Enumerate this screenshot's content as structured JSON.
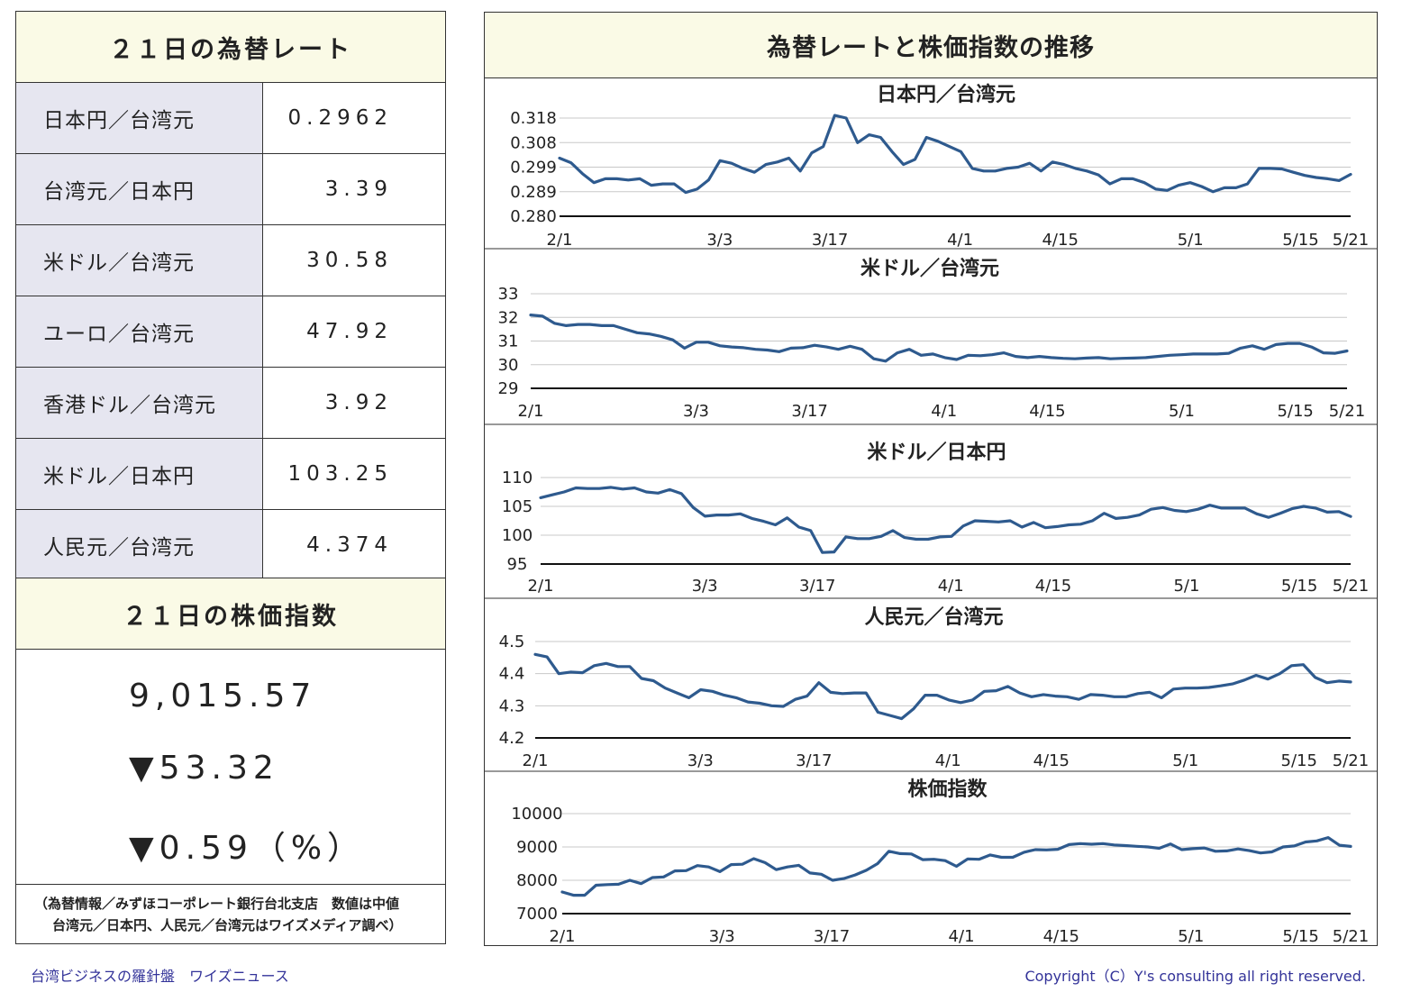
{
  "left_panel": {
    "rates_title": "２１日の為替レート",
    "rates": [
      {
        "label": "日本円／台湾元",
        "value": "0.2962"
      },
      {
        "label": "台湾元／日本円",
        "value": "3.39"
      },
      {
        "label": "米ドル／台湾元",
        "value": "30.58"
      },
      {
        "label": "ユーロ／台湾元",
        "value": "47.92"
      },
      {
        "label": "香港ドル／台湾元",
        "value": "3.92"
      },
      {
        "label": "米ドル／日本円",
        "value": "103.25"
      },
      {
        "label": "人民元／台湾元",
        "value": "4.374"
      }
    ],
    "stock_title": "２１日の株価指数",
    "stock_value": "9,015.57",
    "stock_change": "▼53.32",
    "stock_change_pct": "▼0.59（%）",
    "source_line1": "（為替情報／みずほコーポレート銀行台北支店　数値は中値",
    "source_line2": "台湾元／日本円、人民元／台湾元はワイズメディア調べ）"
  },
  "right_panel": {
    "title": "為替レートと株価指数の推移"
  },
  "footer": {
    "left": "台湾ビジネスの羅針盤　ワイズニュース",
    "right": "Copyright（C）Y's consulting all right reserved."
  },
  "colors": {
    "line": "#2e5a8e",
    "header_bg": "#fafae6",
    "label_bg": "#e6e6f0",
    "footer_text": "#333399"
  },
  "chart_data": [
    {
      "type": "line",
      "title": "日本円／台湾元",
      "x_tick_labels": [
        "2/1",
        "3/3",
        "3/17",
        "4/1",
        "4/15",
        "5/1",
        "5/15",
        "5/21"
      ],
      "y_tick_labels": [
        "0.318",
        "0.308",
        "0.299",
        "0.289",
        "0.280"
      ],
      "ylim": [
        0.28,
        0.318
      ],
      "x_range": [
        0,
        79
      ],
      "x_tick_positions": [
        0,
        16,
        27,
        40,
        50,
        63,
        74,
        79
      ],
      "series": [
        {
          "values": [
            0.3025,
            0.3007,
            0.2965,
            0.293,
            0.2945,
            0.2945,
            0.294,
            0.2945,
            0.292,
            0.2925,
            0.2925,
            0.2892,
            0.2905,
            0.294,
            0.3015,
            0.3005,
            0.2985,
            0.297,
            0.3,
            0.301,
            0.3025,
            0.2975,
            0.3045,
            0.307,
            0.319,
            0.318,
            0.3085,
            0.3115,
            0.3105,
            0.305,
            0.3,
            0.302,
            0.3105,
            0.309,
            0.307,
            0.305,
            0.2985,
            0.2975,
            0.2975,
            0.2985,
            0.299,
            0.3005,
            0.2975,
            0.301,
            0.3,
            0.2985,
            0.2975,
            0.296,
            0.2925,
            0.2945,
            0.2945,
            0.293,
            0.2905,
            0.29,
            0.292,
            0.293,
            0.2915,
            0.2895,
            0.291,
            0.291,
            0.2925,
            0.2985,
            0.2985,
            0.2983,
            0.297,
            0.2958,
            0.295,
            0.2945,
            0.2938,
            0.2962
          ]
        }
      ]
    },
    {
      "type": "line",
      "title": "米ドル／台湾元",
      "x_tick_labels": [
        "2/1",
        "3/3",
        "3/17",
        "4/1",
        "4/15",
        "5/1",
        "5/15",
        "5/21"
      ],
      "y_tick_labels": [
        "33",
        "32",
        "31",
        "30",
        "29"
      ],
      "ylim": [
        29,
        33
      ],
      "x_range": [
        0,
        79
      ],
      "x_tick_positions": [
        0,
        16,
        27,
        40,
        50,
        63,
        74,
        79
      ],
      "series": [
        {
          "values": [
            32.1,
            32.05,
            31.75,
            31.65,
            31.7,
            31.7,
            31.65,
            31.65,
            31.5,
            31.35,
            31.3,
            31.2,
            31.05,
            30.7,
            30.95,
            30.95,
            30.8,
            30.75,
            30.72,
            30.65,
            30.62,
            30.55,
            30.7,
            30.72,
            30.82,
            30.75,
            30.65,
            30.78,
            30.65,
            30.25,
            30.15,
            30.5,
            30.65,
            30.4,
            30.45,
            30.3,
            30.22,
            30.4,
            30.38,
            30.42,
            30.5,
            30.35,
            30.3,
            30.35,
            30.3,
            30.27,
            30.25,
            30.28,
            30.3,
            30.25,
            30.27,
            30.28,
            30.3,
            30.35,
            30.4,
            30.42,
            30.45,
            30.45,
            30.45,
            30.48,
            30.7,
            30.8,
            30.65,
            30.85,
            30.9,
            30.9,
            30.75,
            30.5,
            30.48,
            30.58
          ]
        }
      ]
    },
    {
      "type": "line",
      "title": "米ドル／日本円",
      "x_tick_labels": [
        "2/1",
        "3/3",
        "3/17",
        "4/1",
        "4/15",
        "5/1",
        "5/15",
        "5/21"
      ],
      "y_tick_labels": [
        "110",
        "105",
        "100",
        "95"
      ],
      "ylim": [
        95,
        110
      ],
      "x_range": [
        0,
        79
      ],
      "x_tick_positions": [
        0,
        16,
        27,
        40,
        50,
        63,
        74,
        79
      ],
      "series": [
        {
          "values": [
            106.5,
            107.0,
            107.5,
            108.2,
            108.1,
            108.1,
            108.3,
            108.0,
            108.2,
            107.5,
            107.3,
            107.9,
            107.2,
            104.8,
            103.3,
            103.5,
            103.5,
            103.7,
            102.9,
            102.4,
            101.8,
            103.0,
            101.4,
            100.8,
            97.0,
            97.1,
            99.7,
            99.4,
            99.4,
            99.8,
            100.8,
            99.6,
            99.3,
            99.3,
            99.7,
            99.8,
            101.6,
            102.5,
            102.4,
            102.3,
            102.5,
            101.4,
            102.2,
            101.3,
            101.5,
            101.8,
            101.9,
            102.5,
            103.8,
            102.9,
            103.1,
            103.5,
            104.5,
            104.8,
            104.3,
            104.1,
            104.5,
            105.2,
            104.7,
            104.7,
            104.7,
            103.7,
            103.1,
            103.8,
            104.6,
            105.0,
            104.7,
            104.0,
            104.1,
            103.25
          ]
        }
      ]
    },
    {
      "type": "line",
      "title": "人民元／台湾元",
      "x_tick_labels": [
        "2/1",
        "3/3",
        "3/17",
        "4/1",
        "4/15",
        "5/1",
        "5/15",
        "5/21"
      ],
      "y_tick_labels": [
        "4.5",
        "4.4",
        "4.3",
        "4.2"
      ],
      "ylim": [
        4.2,
        4.5
      ],
      "x_range": [
        0,
        79
      ],
      "x_tick_positions": [
        0,
        16,
        27,
        40,
        50,
        63,
        74,
        79
      ],
      "series": [
        {
          "values": [
            4.46,
            4.452,
            4.4,
            4.405,
            4.403,
            4.425,
            4.432,
            4.422,
            4.422,
            4.385,
            4.378,
            4.355,
            4.34,
            4.325,
            4.35,
            4.345,
            4.333,
            4.325,
            4.312,
            4.308,
            4.3,
            4.298,
            4.32,
            4.33,
            4.372,
            4.342,
            4.338,
            4.34,
            4.34,
            4.28,
            4.27,
            4.26,
            4.29,
            4.333,
            4.333,
            4.318,
            4.31,
            4.318,
            4.345,
            4.347,
            4.36,
            4.34,
            4.328,
            4.335,
            4.33,
            4.328,
            4.32,
            4.335,
            4.333,
            4.328,
            4.328,
            4.338,
            4.342,
            4.325,
            4.352,
            4.355,
            4.355,
            4.357,
            4.362,
            4.368,
            4.38,
            4.395,
            4.383,
            4.4,
            4.425,
            4.428,
            4.388,
            4.372,
            4.377,
            4.374
          ]
        }
      ]
    },
    {
      "type": "line",
      "title": "株価指数",
      "x_tick_labels": [
        "2/1",
        "3/3",
        "3/17",
        "4/1",
        "4/15",
        "5/1",
        "5/15",
        "5/21"
      ],
      "y_tick_labels": [
        "10000",
        "9000",
        "8000",
        "7000"
      ],
      "ylim": [
        7000,
        10000
      ],
      "x_range": [
        0,
        79
      ],
      "x_tick_positions": [
        0,
        16,
        27,
        40,
        50,
        63,
        74,
        79
      ],
      "series": [
        {
          "values": [
            7650,
            7550,
            7550,
            7850,
            7870,
            7880,
            8000,
            7900,
            8080,
            8100,
            8280,
            8290,
            8440,
            8400,
            8260,
            8470,
            8480,
            8650,
            8530,
            8320,
            8400,
            8450,
            8220,
            8180,
            8000,
            8050,
            8160,
            8300,
            8500,
            8870,
            8800,
            8790,
            8620,
            8630,
            8590,
            8420,
            8640,
            8630,
            8760,
            8690,
            8690,
            8840,
            8920,
            8910,
            8930,
            9070,
            9100,
            9080,
            9100,
            9060,
            9040,
            9020,
            9000,
            8960,
            9090,
            8920,
            8950,
            8970,
            8870,
            8880,
            8940,
            8890,
            8820,
            8850,
            9000,
            9030,
            9150,
            9180,
            9280,
            9050,
            9015.57
          ]
        }
      ]
    }
  ]
}
